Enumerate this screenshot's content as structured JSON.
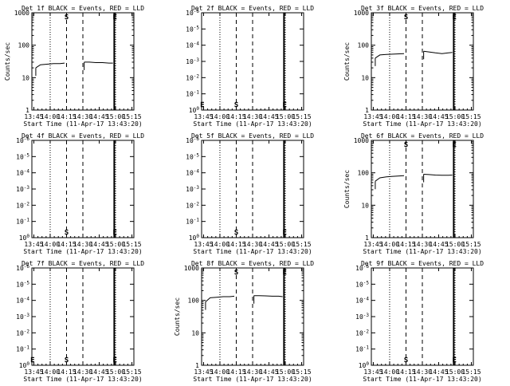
{
  "chart_data": {
    "type": "line",
    "common": {
      "xlabel": "Start Time (11-Apr-17 13:43:20)",
      "ylabel": "Counts/sec",
      "x_ticks": [
        "13:45",
        "14:00",
        "14:15",
        "14:30",
        "14:45",
        "15:00",
        "15:15"
      ],
      "log_y_ticks": [
        "1",
        "10",
        "100",
        "1000"
      ],
      "empty_y_ticks": [
        "10^0",
        "10^-1",
        "10^-2",
        "10^-3",
        "10^-4",
        "10^-5",
        "10^-6"
      ],
      "empty_y_ticks_rows23": [
        "10^0",
        "10^-1",
        "10^-2",
        "10^-3",
        "10^-4",
        "10^-5",
        "10^-6"
      ],
      "xlim": [
        13.72,
        15.28
      ],
      "dotted_lines": [
        14.0,
        15.0
      ],
      "dashed_lines": [
        14.25,
        14.5
      ],
      "solid_line": 14.98,
      "series_color": "#000000",
      "lld_color": "#ff0000"
    },
    "panels": [
      {
        "title": "Det 1f BLACK = Events, RED = LLD",
        "yscale": "log",
        "ylim": [
          1,
          1000
        ],
        "markers": [
          {
            "label": "S",
            "x": 14.25,
            "y": 1000
          },
          {
            "label": "E",
            "x": 14.99,
            "y": 1000
          }
        ],
        "segments": [
          {
            "x": [
              13.78,
              13.85,
              13.95,
              14.05,
              14.15,
              14.22
            ],
            "y": [
              20,
              25,
              26,
              27,
              27,
              28
            ]
          },
          {
            "x": [
              14.52,
              14.6,
              14.7,
              14.8,
              14.9,
              14.96
            ],
            "y": [
              30,
              30,
              29,
              29,
              28,
              28
            ]
          }
        ]
      },
      {
        "title": "Det 2f BLACK = Events, RED = LLD",
        "yscale": "empty",
        "markers": [
          {
            "label": "E",
            "x": 13.73,
            "y": 1
          },
          {
            "label": "S",
            "x": 14.25,
            "y": 1
          },
          {
            "label": "E",
            "x": 14.99,
            "y": 1
          }
        ],
        "segments": []
      },
      {
        "title": "Det 3f BLACK = Events, RED = LLD",
        "yscale": "log",
        "ylim": [
          1,
          1000
        ],
        "markers": [
          {
            "label": "S",
            "x": 14.25,
            "y": 1000
          },
          {
            "label": "E",
            "x": 14.99,
            "y": 1000
          }
        ],
        "segments": [
          {
            "x": [
              13.78,
              13.85,
              13.95,
              14.05,
              14.15,
              14.22
            ],
            "y": [
              40,
              50,
              52,
              53,
              54,
              55
            ]
          },
          {
            "x": [
              14.52,
              14.6,
              14.7,
              14.8,
              14.9,
              14.96
            ],
            "y": [
              65,
              62,
              58,
              55,
              58,
              60
            ]
          }
        ]
      },
      {
        "title": "Det 4f BLACK = Events, RED = LLD",
        "yscale": "empty",
        "markers": [
          {
            "label": "S",
            "x": 14.25,
            "y": 1
          },
          {
            "label": "E",
            "x": 14.99,
            "y": 1
          }
        ],
        "segments": []
      },
      {
        "title": "Det 5f BLACK = Events, RED = LLD",
        "yscale": "empty",
        "markers": [
          {
            "label": "S",
            "x": 14.25,
            "y": 1
          },
          {
            "label": "E",
            "x": 14.99,
            "y": 1
          }
        ],
        "segments": []
      },
      {
        "title": "Det 6f BLACK = Events, RED = LLD",
        "yscale": "log",
        "ylim": [
          1,
          1000
        ],
        "markers": [
          {
            "label": "S",
            "x": 14.25,
            "y": 1000
          },
          {
            "label": "E",
            "x": 14.99,
            "y": 1000
          }
        ],
        "segments": [
          {
            "x": [
              13.78,
              13.85,
              13.95,
              14.05,
              14.15,
              14.22
            ],
            "y": [
              55,
              70,
              75,
              78,
              80,
              82
            ]
          },
          {
            "x": [
              14.52,
              14.6,
              14.7,
              14.8,
              14.9,
              14.96
            ],
            "y": [
              90,
              88,
              85,
              84,
              84,
              85
            ]
          }
        ]
      },
      {
        "title": "Det 7f BLACK = Events, RED = LLD",
        "yscale": "empty",
        "markers": [
          {
            "label": "E",
            "x": 13.73,
            "y": 1
          },
          {
            "label": "S",
            "x": 14.25,
            "y": 1
          },
          {
            "label": "E",
            "x": 14.99,
            "y": 1
          }
        ],
        "segments": []
      },
      {
        "title": "Det 8f BLACK = Events, RED = LLD",
        "yscale": "log",
        "ylim": [
          1,
          1000
        ],
        "markers": [
          {
            "label": "S",
            "x": 14.25,
            "y": 1000
          },
          {
            "label": "E",
            "x": 14.99,
            "y": 1000
          }
        ],
        "segments": [
          {
            "x": [
              13.78,
              13.85,
              13.95,
              14.05,
              14.15,
              14.22
            ],
            "y": [
              90,
              120,
              125,
              130,
              130,
              135
            ]
          },
          {
            "x": [
              14.52,
              14.6,
              14.7,
              14.8,
              14.9,
              14.96
            ],
            "y": [
              140,
              140,
              138,
              135,
              135,
              130
            ]
          }
        ]
      },
      {
        "title": "Det 9f BLACK = Events, RED = LLD",
        "yscale": "empty",
        "markers": [
          {
            "label": "S",
            "x": 14.25,
            "y": 1
          },
          {
            "label": "E",
            "x": 14.99,
            "y": 1
          }
        ],
        "segments": []
      }
    ]
  }
}
